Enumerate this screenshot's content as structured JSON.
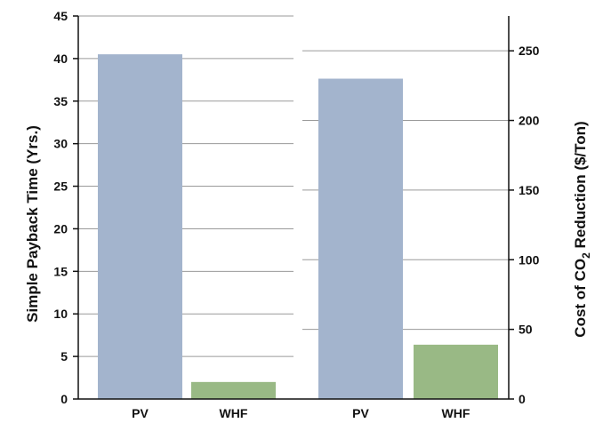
{
  "chart_data": {
    "type": "bar",
    "panels": [
      {
        "axis": "left",
        "ylabel": "Simple Payback Time (Yrs.)",
        "categories": [
          "PV",
          "WHF"
        ],
        "values": [
          40.5,
          2.0
        ],
        "colors": [
          "#a3b4cd",
          "#99b985"
        ],
        "ylim": [
          0,
          45
        ],
        "yticks": [
          0,
          5,
          10,
          15,
          20,
          25,
          30,
          35,
          40,
          45
        ]
      },
      {
        "axis": "right",
        "ylabel_parts": {
          "before": "Cost of CO",
          "subscript": "2",
          "after": " Reduction ($/Ton)"
        },
        "categories": [
          "PV",
          "WHF"
        ],
        "values": [
          230,
          39
        ],
        "colors": [
          "#a3b4cd",
          "#99b985"
        ],
        "ylim": [
          0,
          275
        ],
        "yticks": [
          0,
          50,
          100,
          150,
          200,
          250
        ]
      }
    ],
    "grid": true
  }
}
